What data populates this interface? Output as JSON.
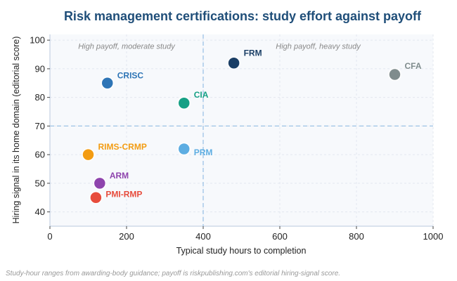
{
  "chart_data": {
    "type": "scatter",
    "title": "Risk management certifications: study effort against payoff",
    "xlabel": "Typical study hours to completion",
    "ylabel": "Hiring signal in its home domain (editorial score)",
    "xlim": [
      0,
      1000
    ],
    "ylim": [
      35,
      102
    ],
    "xticks": [
      0,
      200,
      400,
      600,
      800,
      1000
    ],
    "yticks": [
      40,
      50,
      60,
      70,
      80,
      90,
      100
    ],
    "grid": true,
    "reference_lines": {
      "x": 400,
      "y": 70
    },
    "annotations": [
      {
        "text": "High payoff, moderate study",
        "x": 200,
        "y": 98
      },
      {
        "text": "High payoff, heavy study",
        "x": 700,
        "y": 98
      }
    ],
    "points": [
      {
        "label": "FRM",
        "x": 480,
        "y": 92,
        "color": "#1b3f66"
      },
      {
        "label": "CFA",
        "x": 900,
        "y": 88,
        "color": "#7f8c8d"
      },
      {
        "label": "CRISC",
        "x": 150,
        "y": 85,
        "color": "#2e75b6"
      },
      {
        "label": "CIA",
        "x": 350,
        "y": 78,
        "color": "#16a085"
      },
      {
        "label": "RIMS-CRMP",
        "x": 100,
        "y": 60,
        "color": "#f39c12"
      },
      {
        "label": "PRM",
        "x": 350,
        "y": 62,
        "color": "#5dade2"
      },
      {
        "label": "ARM",
        "x": 130,
        "y": 50,
        "color": "#8e44ad"
      },
      {
        "label": "PMI-RMP",
        "x": 120,
        "y": 45,
        "color": "#e74c3c"
      }
    ]
  },
  "footnote": "Study-hour ranges from awarding-body guidance; payoff is riskpublishing.com's editorial hiring-signal score."
}
